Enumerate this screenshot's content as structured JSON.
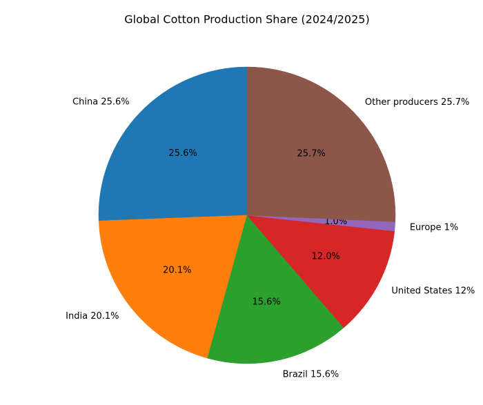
{
  "chart_data": {
    "type": "pie",
    "title": "Global Cotton Production Share (2024/2025)",
    "categories": [
      "China",
      "India",
      "Brazil",
      "United States",
      "Europe",
      "Other producers"
    ],
    "labels": [
      "China 25.6%",
      "India 20.1%",
      "Brazil 15.6%",
      "United States 12%",
      "Europe 1%",
      "Other producers 25.7%"
    ],
    "values": [
      25.6,
      20.1,
      15.6,
      12.0,
      1.0,
      25.7
    ],
    "value_labels": [
      "25.6%",
      "20.1%",
      "15.6%",
      "12.0%",
      "1.0%",
      "25.7%"
    ],
    "colors": [
      "#1f77b4",
      "#ff7f0e",
      "#2ca02c",
      "#d62728",
      "#9467bd",
      "#8c564b"
    ]
  }
}
